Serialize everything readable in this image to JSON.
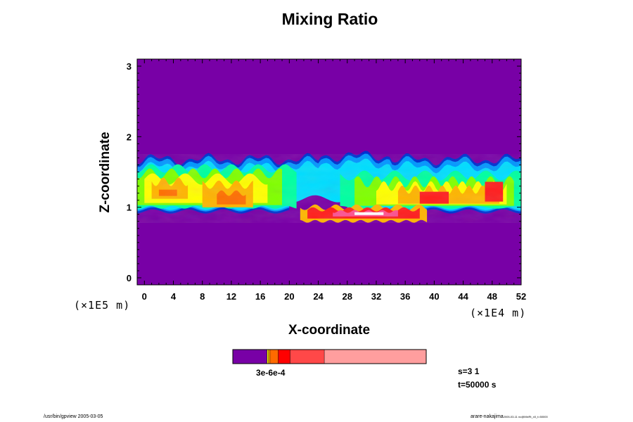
{
  "chart_data": {
    "type": "heatmap",
    "title": "Mixing Ratio",
    "xlabel": "X-coordinate",
    "ylabel": "Z-coordinate",
    "x_scale_label": "(×1E4 m)",
    "z_scale_label": "(×1E5 m)",
    "xlim": [
      -1,
      52
    ],
    "ylim": [
      -0.1,
      3.1
    ],
    "x_ticks": [
      0,
      4,
      8,
      12,
      16,
      20,
      24,
      28,
      32,
      36,
      40,
      44,
      48,
      52
    ],
    "y_ticks": [
      0,
      1,
      2,
      3
    ],
    "colorbar": {
      "tick_label": "3e-6e-4",
      "colors": [
        "#7800a6",
        "#ffff00",
        "#ffa500",
        "#ff6a00",
        "#ff0000",
        "#ff4848",
        "#ff9e9e"
      ],
      "weights": [
        46,
        2,
        2,
        11,
        16,
        46,
        137
      ]
    },
    "colors": {
      "background": "#7800a6",
      "layer": [
        "#0030d0",
        "#0096ff",
        "#00ddff",
        "#00ffa0",
        "#80ff00",
        "#ffff00",
        "#ffb400",
        "#ff6e00",
        "#ff1e1e",
        "#ff5090",
        "#ffffff"
      ]
    }
  },
  "info": {
    "step": "s=3 1",
    "time": "t=50000 s"
  },
  "footer": {
    "left": "/usr/bin/gpview 2005-03-05",
    "right_user": "arare-nakajima",
    "right_detail": "2005-03-11 nc@MixRt_x0_t=50000"
  }
}
